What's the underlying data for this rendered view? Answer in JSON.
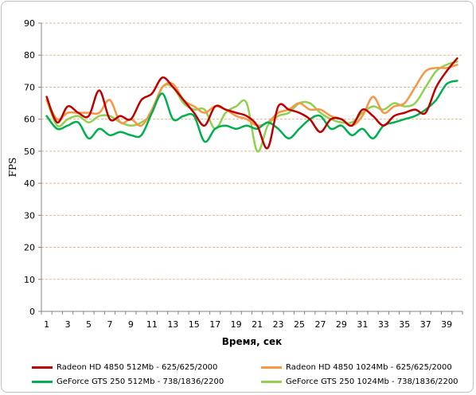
{
  "chart_data": {
    "type": "line",
    "xlabel": "Время, сек",
    "ylabel": "FPS",
    "xlim": [
      1,
      40
    ],
    "ylim": [
      0,
      90
    ],
    "yticks": [
      0,
      10,
      20,
      30,
      40,
      50,
      60,
      70,
      80,
      90
    ],
    "xticks": [
      1,
      3,
      5,
      7,
      9,
      11,
      13,
      15,
      17,
      19,
      21,
      23,
      25,
      27,
      29,
      31,
      33,
      35,
      37,
      39
    ],
    "grid": "horizontal dashed",
    "legend_position": "bottom",
    "x": [
      1,
      2,
      3,
      4,
      5,
      6,
      7,
      8,
      9,
      10,
      11,
      12,
      13,
      14,
      15,
      16,
      17,
      18,
      19,
      20,
      21,
      22,
      23,
      24,
      25,
      26,
      27,
      28,
      29,
      30,
      31,
      32,
      33,
      34,
      35,
      36,
      37,
      38,
      39,
      40
    ],
    "series": [
      {
        "name": "Radeon HD 4850 512Mb - 625/625/2000",
        "color": "#c00000",
        "values": [
          67,
          59,
          64,
          62,
          61,
          69,
          60,
          61,
          60,
          66,
          68,
          73,
          70,
          66,
          62,
          58,
          64,
          63,
          62,
          61,
          58,
          51,
          64,
          63,
          62,
          60,
          56,
          60,
          60,
          58,
          63,
          61,
          58,
          61,
          62,
          63,
          62,
          70,
          75,
          79
        ]
      },
      {
        "name": "Radeon HD 4850 1024Mb - 625/625/2000",
        "color": "#f79646",
        "values": [
          66,
          60,
          62,
          62,
          62,
          62,
          66,
          59,
          60,
          58,
          63,
          70,
          71,
          66,
          64,
          62,
          64,
          63,
          61,
          60,
          58,
          59,
          62,
          63,
          65,
          63,
          63,
          61,
          60,
          58,
          61,
          67,
          62,
          64,
          65,
          70,
          75,
          76,
          76,
          77
        ]
      },
      {
        "name": "GeForce GTS 250 512Mb - 738/1836/2200",
        "color": "#00b050",
        "values": [
          61,
          57,
          58,
          59,
          54,
          57,
          55,
          56,
          55,
          55,
          62,
          68,
          60,
          61,
          61,
          53,
          57,
          58,
          57,
          58,
          57,
          59,
          57,
          54,
          57,
          60,
          61,
          57,
          58,
          55,
          57,
          54,
          58,
          59,
          60,
          61,
          63,
          66,
          71,
          72
        ]
      },
      {
        "name": "GeForce GTS 250 1024Mb - 738/1836/2200",
        "color": "#92d050",
        "values": [
          66,
          58,
          60,
          61,
          59,
          61,
          61,
          59,
          58,
          59,
          62,
          70,
          70,
          65,
          63,
          63,
          57,
          62,
          64,
          65,
          50,
          58,
          61,
          62,
          65,
          65,
          62,
          60,
          59,
          59,
          62,
          64,
          63,
          65,
          64,
          65,
          70,
          75,
          77,
          78
        ]
      }
    ]
  }
}
